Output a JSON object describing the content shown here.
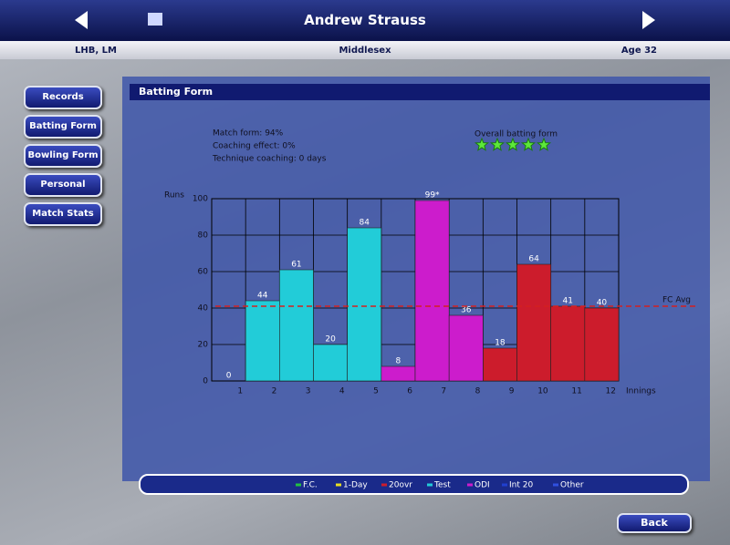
{
  "header": {
    "title": "Andrew Strauss",
    "style": "LHB, LM",
    "county": "Middlesex",
    "age": "Age 32"
  },
  "menu": [
    "Records",
    "Batting Form",
    "Bowling Form",
    "Personal",
    "Match Stats"
  ],
  "panel": {
    "title": "Batting Form",
    "info": [
      "Match form: 94%",
      "Coaching effect: 0%",
      "Technique coaching: 0 days"
    ],
    "overall": {
      "label": "Overall batting form",
      "rating": 5
    }
  },
  "chart_data": {
    "type": "bar",
    "y_label": "Runs",
    "x_label": "Innings",
    "categories": [
      "1",
      "2",
      "3",
      "4",
      "5",
      "6",
      "7",
      "8",
      "9",
      "10",
      "11",
      "12"
    ],
    "ylim": [
      0,
      100
    ],
    "yticks": [
      0,
      20,
      40,
      60,
      80,
      100
    ],
    "grid": true,
    "reference_line": {
      "label": "FC Avg",
      "value": 41,
      "color": "#d42020"
    },
    "series": [
      {
        "name": "F.C.",
        "color": "#22c040",
        "values": [
          0,
          null,
          null,
          null,
          null,
          null,
          null,
          null,
          null,
          null,
          null,
          null
        ]
      },
      {
        "name": "1-Day",
        "color": "#e8e020",
        "values": [
          null,
          null,
          null,
          null,
          null,
          null,
          null,
          null,
          null,
          null,
          null,
          null
        ]
      },
      {
        "name": "20ovr",
        "color": "#cc1c2c",
        "values": [
          null,
          null,
          null,
          null,
          null,
          null,
          null,
          null,
          18,
          64,
          41,
          40
        ]
      },
      {
        "name": "Test",
        "color": "#22ccd8",
        "values": [
          null,
          44,
          61,
          20,
          84,
          null,
          null,
          null,
          null,
          null,
          null,
          null
        ]
      },
      {
        "name": "ODI",
        "color": "#cc1ccc",
        "values": [
          null,
          null,
          null,
          null,
          null,
          8,
          99,
          36,
          null,
          null,
          null,
          null
        ],
        "value_labels": [
          null,
          null,
          null,
          null,
          null,
          "8",
          "99*",
          "36",
          null,
          null,
          null,
          null
        ]
      },
      {
        "name": "Int 20",
        "color": "#2040d0",
        "values": [
          null,
          null,
          null,
          null,
          null,
          null,
          null,
          null,
          null,
          null,
          null,
          null
        ]
      },
      {
        "name": "Other",
        "color": "#3050e0",
        "values": [
          null,
          null,
          null,
          null,
          null,
          null,
          null,
          null,
          null,
          null,
          null,
          null
        ]
      }
    ]
  },
  "footer": {
    "back": "Back"
  }
}
